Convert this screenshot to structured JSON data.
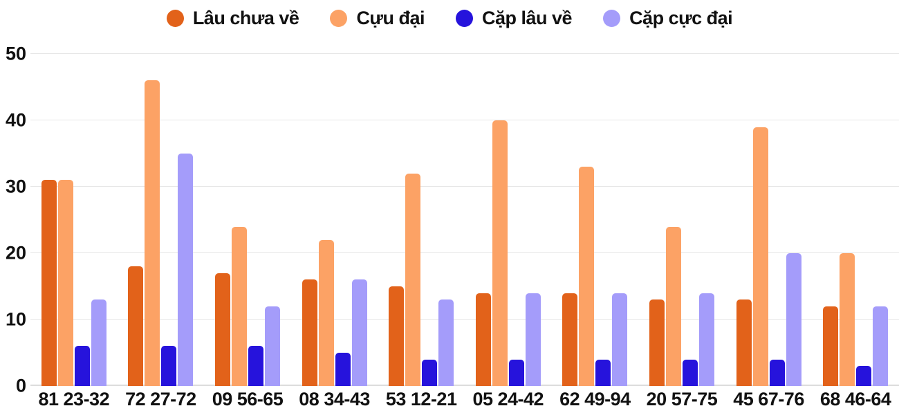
{
  "chart_data": {
    "type": "bar",
    "title": "",
    "categories": [
      "81 23-32",
      "72 27-72",
      "09 56-65",
      "08 34-43",
      "53 12-21",
      "05 24-42",
      "62 49-94",
      "20 57-75",
      "45 67-76",
      "68 46-64"
    ],
    "series": [
      {
        "name": "Lâu chưa về",
        "color": "#e2621a",
        "values": [
          31,
          18,
          17,
          16,
          15,
          14,
          14,
          13,
          13,
          12
        ]
      },
      {
        "name": "Cựu đại",
        "color": "#fca265",
        "values": [
          31,
          46,
          24,
          22,
          32,
          40,
          33,
          24,
          39,
          20
        ]
      },
      {
        "name": "Cặp lâu về",
        "color": "#2613dc",
        "values": [
          6,
          6,
          6,
          5,
          4,
          4,
          4,
          4,
          4,
          3
        ]
      },
      {
        "name": "Cặp cực đại",
        "color": "#a49cfa",
        "values": [
          13,
          35,
          12,
          16,
          13,
          14,
          14,
          14,
          20,
          12
        ]
      }
    ],
    "ylim": [
      0,
      50
    ],
    "yticks": [
      0,
      10,
      20,
      30,
      40,
      50
    ],
    "xlabel": "",
    "ylabel": "",
    "grid": true,
    "legend_position": "top"
  },
  "colors": {
    "background": "#ffffff",
    "gridline": "#e6e6e6",
    "axis_line": "#dcdcdc",
    "text": "#111111"
  }
}
